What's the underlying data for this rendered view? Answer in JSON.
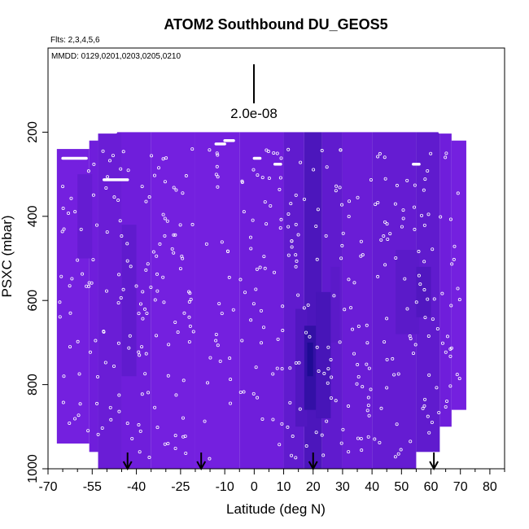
{
  "chart_data": {
    "type": "heatmap",
    "title": "ATOM2 Southbound DU_GEOS5",
    "flights_label": "Flts: 2,3,4,5,6",
    "dates_label": "MMDD: 0129,0201,0203,0205,0210",
    "scale_label": "2.0e-08",
    "xlabel": "Latitude (deg N)",
    "ylabel": "PSXC (mbar)",
    "xlim": [
      -70,
      85
    ],
    "ylim": [
      1000,
      0
    ],
    "xticks": [
      -70,
      -55,
      -40,
      -25,
      -10,
      0,
      10,
      20,
      30,
      40,
      50,
      60,
      70,
      80
    ],
    "xtick_labels": [
      "-70",
      "-55",
      "-40",
      "-25",
      "-10",
      "0",
      "10",
      "20",
      "30",
      "40",
      "50",
      "60",
      "70",
      "80"
    ],
    "yticks": [
      200,
      400,
      600,
      800,
      1000
    ],
    "ytick_labels": [
      "200",
      "400",
      "600",
      "800",
      "1000"
    ],
    "arrows_latitude": [
      -43,
      -18,
      20,
      61
    ],
    "field_color": "#7e22e8",
    "high_color": "#1a0a90",
    "marker_color": "#ffffff",
    "columns": [
      {
        "lat0": -67,
        "lat1": -56,
        "p_top": 240,
        "p_bot": 940,
        "v": 0.1
      },
      {
        "lat0": -56,
        "lat1": -53,
        "p_top": 220,
        "p_bot": 960,
        "v": 0.15
      },
      {
        "lat0": -53,
        "lat1": -45,
        "p_top": 200,
        "p_bot": 1000,
        "v": 0.2
      },
      {
        "lat0": -45,
        "lat1": -35,
        "p_top": 200,
        "p_bot": 1000,
        "v": 0.15
      },
      {
        "lat0": -35,
        "lat1": -20,
        "p_top": 200,
        "p_bot": 1000,
        "v": 0.1
      },
      {
        "lat0": -20,
        "lat1": -5,
        "p_top": 200,
        "p_bot": 1000,
        "v": 0.1
      },
      {
        "lat0": -5,
        "lat1": 10,
        "p_top": 200,
        "p_bot": 1000,
        "v": 0.15
      },
      {
        "lat0": 10,
        "lat1": 17,
        "p_top": 200,
        "p_bot": 1000,
        "v": 0.3
      },
      {
        "lat0": 17,
        "lat1": 23,
        "p_top": 200,
        "p_bot": 1000,
        "v": 0.5
      },
      {
        "lat0": 23,
        "lat1": 30,
        "p_top": 200,
        "p_bot": 1000,
        "v": 0.3
      },
      {
        "lat0": 30,
        "lat1": 40,
        "p_top": 200,
        "p_bot": 1000,
        "v": 0.2
      },
      {
        "lat0": 40,
        "lat1": 55,
        "p_top": 200,
        "p_bot": 1000,
        "v": 0.25
      },
      {
        "lat0": 55,
        "lat1": 63,
        "p_top": 200,
        "p_bot": 960,
        "v": 0.3
      },
      {
        "lat0": 63,
        "lat1": 67,
        "p_top": 200,
        "p_bot": 900,
        "v": 0.15
      },
      {
        "lat0": 67,
        "lat1": 72,
        "p_top": 220,
        "p_bot": 860,
        "v": 0.1
      }
    ],
    "patches": [
      {
        "lat0": -45,
        "lat1": -40,
        "p0": 420,
        "p1": 780,
        "v": 0.3
      },
      {
        "lat0": 14,
        "lat1": 18,
        "p0": 620,
        "p1": 900,
        "v": 0.45
      },
      {
        "lat0": 17,
        "lat1": 21,
        "p0": 660,
        "p1": 860,
        "v": 0.75
      },
      {
        "lat0": 18,
        "lat1": 20,
        "p0": 700,
        "p1": 780,
        "v": 0.95
      },
      {
        "lat0": 21,
        "lat1": 26,
        "p0": 580,
        "p1": 880,
        "v": 0.55
      },
      {
        "lat0": 26,
        "lat1": 29,
        "p0": 520,
        "p1": 700,
        "v": 0.35
      },
      {
        "lat0": 48,
        "lat1": 56,
        "p0": 480,
        "p1": 680,
        "v": 0.35
      },
      {
        "lat0": 55,
        "lat1": 60,
        "p0": 520,
        "p1": 640,
        "v": 0.45
      },
      {
        "lat0": -60,
        "lat1": -55,
        "p0": 300,
        "p1": 500,
        "v": 0.25
      }
    ],
    "flight_segments": [
      {
        "lat0": -65,
        "lat1": -57,
        "p": 262
      },
      {
        "lat0": -54,
        "lat1": -47,
        "p": 200
      },
      {
        "lat0": -51,
        "lat1": -43,
        "p": 313
      },
      {
        "lat0": -13,
        "lat1": -10,
        "p": 228
      },
      {
        "lat0": -10,
        "lat1": -7,
        "p": 220
      },
      {
        "lat0": 0,
        "lat1": 2,
        "p": 262
      },
      {
        "lat0": 7,
        "lat1": 9,
        "p": 276
      },
      {
        "lat0": 63,
        "lat1": 69,
        "p": 200
      },
      {
        "lat0": 54,
        "lat1": 56,
        "p": 276
      }
    ]
  }
}
